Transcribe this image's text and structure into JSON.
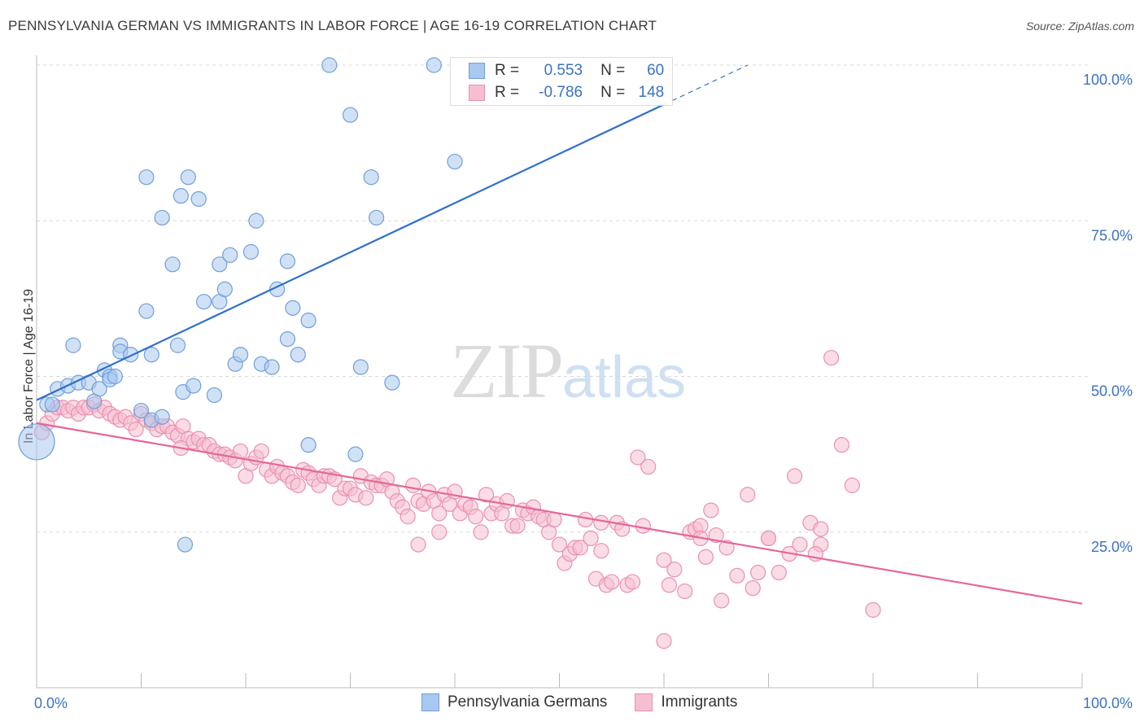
{
  "title": "PENNSYLVANIA GERMAN VS IMMIGRANTS IN LABOR FORCE | AGE 16-19 CORRELATION CHART",
  "source": "Source: ZipAtlas.com",
  "watermark": {
    "zip": "ZIP",
    "atlas": "atlas"
  },
  "legend_top": {
    "rows": [
      {
        "r_label": "R =",
        "r_value": "0.553",
        "n_label": "N =",
        "n_value": "60"
      },
      {
        "r_label": "R =",
        "r_value": "-0.786",
        "n_label": "N =",
        "n_value": "148"
      }
    ]
  },
  "legend_bottom": [
    "Pennsylvania Germans",
    "Immigrants"
  ],
  "colors": {
    "blue_fill": "#a9c8ef",
    "blue_stroke": "#6f9fdc",
    "blue_line": "#2f6fcf",
    "pink_fill": "#f6bfd0",
    "pink_stroke": "#eb8fb0",
    "pink_line": "#e5669a",
    "tick_label": "#3a72c4",
    "grid": "#d8d8d8"
  },
  "chart_data": {
    "type": "scatter",
    "ylabel": "In Labor Force | Age 16-19",
    "xlim": [
      0,
      100
    ],
    "ylim": [
      0,
      100
    ],
    "x_ticks": [
      "0.0%",
      "100.0%"
    ],
    "y_ticks": [
      "25.0%",
      "50.0%",
      "75.0%",
      "100.0%"
    ],
    "grid": "horizontal dashed",
    "series": [
      {
        "name": "Pennsylvania Germans",
        "r": 0.553,
        "n": 60,
        "trend": {
          "x0": 0,
          "y0": 46.2,
          "x1": 68,
          "y1": 100,
          "solid_until": 60
        },
        "points": [
          [
            0,
            39.5,
            22
          ],
          [
            1,
            45.5,
            9
          ],
          [
            1.5,
            45.5,
            9
          ],
          [
            2,
            48,
            9
          ],
          [
            3,
            48.5,
            9
          ],
          [
            3.5,
            55,
            9
          ],
          [
            4,
            49,
            9
          ],
          [
            5,
            49,
            9
          ],
          [
            5.5,
            46,
            9
          ],
          [
            6,
            48,
            9
          ],
          [
            6.5,
            51,
            9
          ],
          [
            7,
            50,
            9
          ],
          [
            7,
            49.5,
            9
          ],
          [
            7.5,
            50,
            9
          ],
          [
            8,
            55,
            9
          ],
          [
            8,
            54,
            9
          ],
          [
            9,
            53.5,
            9
          ],
          [
            10,
            44.5,
            9
          ],
          [
            10.5,
            82,
            9
          ],
          [
            11,
            43,
            9
          ],
          [
            10.5,
            60.5,
            9
          ],
          [
            11,
            53.5,
            9
          ],
          [
            12,
            75.5,
            9
          ],
          [
            12,
            43.5,
            9
          ],
          [
            13,
            68,
            9
          ],
          [
            13.5,
            55,
            9
          ],
          [
            13.8,
            79,
            9
          ],
          [
            14,
            47.5,
            9
          ],
          [
            14.2,
            23,
            9
          ],
          [
            14.5,
            82,
            9
          ],
          [
            15,
            48.5,
            9
          ],
          [
            15.5,
            78.5,
            9
          ],
          [
            16,
            62,
            9
          ],
          [
            17,
            47,
            9
          ],
          [
            17.5,
            62,
            9
          ],
          [
            17.5,
            68,
            9
          ],
          [
            18,
            64,
            9
          ],
          [
            18.5,
            69.5,
            9
          ],
          [
            19,
            52,
            9
          ],
          [
            19.5,
            53.5,
            9
          ],
          [
            20.5,
            70,
            9
          ],
          [
            21,
            75,
            9
          ],
          [
            21.5,
            52,
            9
          ],
          [
            22.5,
            51.5,
            9
          ],
          [
            23,
            64,
            9
          ],
          [
            24,
            68.5,
            9
          ],
          [
            24,
            56,
            9
          ],
          [
            24.5,
            61,
            9
          ],
          [
            25,
            53.5,
            9
          ],
          [
            26,
            59,
            9
          ],
          [
            26,
            39,
            9
          ],
          [
            28,
            100,
            9
          ],
          [
            30,
            92,
            9
          ],
          [
            30.5,
            37.5,
            9
          ],
          [
            31,
            51.5,
            9
          ],
          [
            32,
            82,
            9
          ],
          [
            32.5,
            75.5,
            9
          ],
          [
            34,
            49,
            9
          ],
          [
            38,
            100,
            9
          ],
          [
            40,
            84.5,
            9
          ]
        ]
      },
      {
        "name": "Immigrants",
        "r": -0.786,
        "n": 148,
        "trend": {
          "x0": 0,
          "y0": 42.5,
          "x1": 100,
          "y1": 13.5
        },
        "points": [
          [
            0.5,
            41,
            9
          ],
          [
            1,
            42.5,
            9
          ],
          [
            1.5,
            44,
            9
          ],
          [
            2,
            45,
            9
          ],
          [
            2.5,
            45,
            9
          ],
          [
            3,
            44.5,
            9
          ],
          [
            3.5,
            45,
            9
          ],
          [
            4,
            44,
            9
          ],
          [
            4.5,
            45,
            9
          ],
          [
            5,
            45,
            9
          ],
          [
            5.5,
            45.5,
            9
          ],
          [
            6,
            44.5,
            9
          ],
          [
            6.5,
            45,
            9
          ],
          [
            7,
            44,
            9
          ],
          [
            7.5,
            43.5,
            9
          ],
          [
            8,
            43,
            9
          ],
          [
            8.5,
            43.5,
            9
          ],
          [
            9,
            42.5,
            9
          ],
          [
            9.5,
            41.5,
            9
          ],
          [
            10,
            44,
            9
          ],
          [
            10.5,
            43,
            9
          ],
          [
            11,
            42.5,
            9
          ],
          [
            11.5,
            41.5,
            9
          ],
          [
            12,
            42,
            9
          ],
          [
            12.5,
            42,
            9
          ],
          [
            13,
            41,
            9
          ],
          [
            13.5,
            40.5,
            9
          ],
          [
            14,
            42,
            9
          ],
          [
            14.5,
            40,
            9
          ],
          [
            15,
            39.5,
            9
          ],
          [
            13.8,
            38.5,
            9
          ],
          [
            15.5,
            40,
            9
          ],
          [
            16,
            39,
            9
          ],
          [
            16.5,
            39,
            9
          ],
          [
            17,
            38,
            9
          ],
          [
            17.5,
            37.5,
            9
          ],
          [
            18,
            37.5,
            9
          ],
          [
            18.5,
            37,
            9
          ],
          [
            19,
            36.5,
            9
          ],
          [
            19.5,
            38,
            9
          ],
          [
            20,
            34,
            9
          ],
          [
            20.5,
            36,
            9
          ],
          [
            21,
            37,
            9
          ],
          [
            21.5,
            38,
            9
          ],
          [
            22,
            35,
            9
          ],
          [
            22.5,
            34,
            9
          ],
          [
            23,
            35.5,
            9
          ],
          [
            23.5,
            34.5,
            9
          ],
          [
            24,
            34,
            9
          ],
          [
            24.5,
            33,
            9
          ],
          [
            25,
            32.5,
            9
          ],
          [
            25.5,
            35,
            9
          ],
          [
            26,
            34.5,
            9
          ],
          [
            26.5,
            33.5,
            9
          ],
          [
            27,
            32.5,
            9
          ],
          [
            27.5,
            34,
            9
          ],
          [
            28,
            34,
            9
          ],
          [
            28.5,
            33.5,
            9
          ],
          [
            29,
            30.5,
            9
          ],
          [
            29.5,
            32,
            9
          ],
          [
            30,
            32,
            9
          ],
          [
            30.5,
            31,
            9
          ],
          [
            31,
            34,
            9
          ],
          [
            31.5,
            30.5,
            9
          ],
          [
            32,
            33,
            9
          ],
          [
            32.5,
            32.5,
            9
          ],
          [
            33,
            32.5,
            9
          ],
          [
            33.5,
            33.5,
            9
          ],
          [
            34,
            31.5,
            9
          ],
          [
            34.5,
            30,
            9
          ],
          [
            35,
            29,
            9
          ],
          [
            35.5,
            27.5,
            9
          ],
          [
            36,
            32.5,
            9
          ],
          [
            36.5,
            30,
            9
          ],
          [
            37,
            29.5,
            9
          ],
          [
            37.5,
            31.5,
            9
          ],
          [
            38,
            30,
            9
          ],
          [
            38.5,
            28,
            9
          ],
          [
            39,
            31,
            9
          ],
          [
            39.5,
            29.5,
            9
          ],
          [
            40,
            31.5,
            9
          ],
          [
            40.5,
            28,
            9
          ],
          [
            41,
            29.5,
            9
          ],
          [
            41.5,
            29,
            9
          ],
          [
            42,
            27.5,
            9
          ],
          [
            42.5,
            25,
            9
          ],
          [
            43,
            31,
            9
          ],
          [
            43.5,
            28,
            9
          ],
          [
            44,
            29.5,
            9
          ],
          [
            44.5,
            28,
            9
          ],
          [
            45,
            30,
            9
          ],
          [
            45.5,
            26,
            9
          ],
          [
            46,
            26,
            9
          ],
          [
            46.5,
            28.5,
            9
          ],
          [
            47,
            28,
            9
          ],
          [
            47.5,
            29,
            9
          ],
          [
            48,
            27.5,
            9
          ],
          [
            48.5,
            27,
            9
          ],
          [
            49,
            25,
            9
          ],
          [
            49.5,
            27,
            9
          ],
          [
            50,
            23,
            9
          ],
          [
            50.5,
            20,
            9
          ],
          [
            51,
            21.5,
            9
          ],
          [
            51.5,
            22.5,
            9
          ],
          [
            52,
            22.5,
            9
          ],
          [
            52.5,
            27,
            9
          ],
          [
            53,
            24,
            9
          ],
          [
            53.5,
            17.5,
            9
          ],
          [
            54,
            26.5,
            9
          ],
          [
            54.5,
            16.5,
            9
          ],
          [
            55,
            17,
            9
          ],
          [
            55.5,
            26.5,
            9
          ],
          [
            56,
            25.5,
            9
          ],
          [
            56.5,
            16.5,
            9
          ],
          [
            57,
            17,
            9
          ],
          [
            57.5,
            37,
            9
          ],
          [
            58,
            26,
            9
          ],
          [
            58.5,
            35.5,
            9
          ],
          [
            60,
            20.5,
            9
          ],
          [
            60.5,
            16.5,
            9
          ],
          [
            61,
            19,
            9
          ],
          [
            62,
            15.5,
            9
          ],
          [
            62.5,
            25,
            9
          ],
          [
            63,
            25.5,
            9
          ],
          [
            63.5,
            26,
            9
          ],
          [
            64,
            21,
            9
          ],
          [
            64.5,
            28.5,
            9
          ],
          [
            65,
            24.5,
            9
          ],
          [
            65.5,
            14,
            9
          ],
          [
            66,
            22.5,
            9
          ],
          [
            67,
            18,
            9
          ],
          [
            68,
            31,
            9
          ],
          [
            69,
            18.5,
            9
          ],
          [
            70,
            24,
            9
          ],
          [
            71,
            18.5,
            9
          ],
          [
            72,
            21.5,
            9
          ],
          [
            73,
            23,
            9
          ],
          [
            74,
            26.5,
            9
          ],
          [
            75,
            23,
            9
          ],
          [
            76,
            53,
            9
          ],
          [
            77,
            39,
            9
          ],
          [
            78,
            32.5,
            9
          ],
          [
            80,
            12.5,
            9
          ],
          [
            68.5,
            16,
            9
          ],
          [
            60,
            7.5,
            9
          ],
          [
            54,
            22,
            9
          ],
          [
            63.5,
            24,
            9
          ],
          [
            75,
            25.5,
            9
          ],
          [
            72.5,
            34,
            9
          ],
          [
            70,
            24,
            9
          ],
          [
            74.5,
            21.5,
            9
          ],
          [
            38.5,
            25,
            9
          ],
          [
            36.5,
            23,
            9
          ]
        ]
      }
    ]
  }
}
